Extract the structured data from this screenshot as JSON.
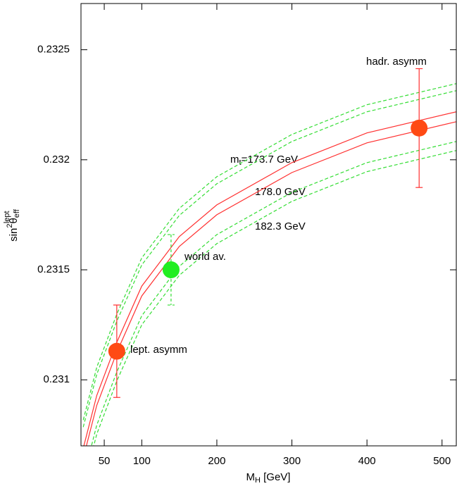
{
  "chart_data": {
    "type": "scatter",
    "x_label": {
      "main": "M",
      "sub": "H",
      "rest": " [GeV]"
    },
    "y_label": {
      "main": "sin",
      "sup": "2",
      "theta": "θ",
      "sub": "eff",
      "sup2": "lept"
    },
    "xlim": [
      19,
      519
    ],
    "ylim": [
      0.2307,
      0.23271
    ],
    "xticks": [
      50,
      100,
      200,
      300,
      400,
      500
    ],
    "yticks": [
      0.231,
      0.2315,
      0.232,
      0.2325
    ],
    "points": [
      {
        "name": "lept. asymm",
        "x": 66.7,
        "y": 0.23113,
        "yerr": 0.00021,
        "color": "#ff4a14",
        "err_color": "#ff3030",
        "err_dash": false
      },
      {
        "name": "world av.",
        "x": 139,
        "y": 0.2315,
        "yerr": 0.00016,
        "color": "#22ee22",
        "err_color": "#33dd33",
        "err_dash": true
      },
      {
        "name": "hadr. asymm",
        "x": 469.5,
        "y": 0.232144,
        "yerr": 0.00027,
        "color": "#ff4a14",
        "err_color": "#ff3030",
        "err_dash": false
      }
    ],
    "curve_x": [
      22,
      40,
      66.7,
      100,
      150,
      200,
      300,
      400,
      519
    ],
    "curves": [
      {
        "color": "#33dd33",
        "dash": true,
        "values": [
          0.230817,
          0.231057,
          0.231298,
          0.231554,
          0.231779,
          0.231923,
          0.232115,
          0.23225,
          0.232346
        ]
      },
      {
        "color": "#33dd33",
        "dash": true,
        "values": [
          0.230785,
          0.231025,
          0.231266,
          0.231522,
          0.231747,
          0.231891,
          0.232083,
          0.232218,
          0.232314
        ]
      },
      {
        "color": "#ff3030",
        "dash": false,
        "values": [
          0.230689,
          0.230929,
          0.23117,
          0.231426,
          0.231651,
          0.231795,
          0.231987,
          0.232122,
          0.232218
        ]
      },
      {
        "color": "#ff3030",
        "dash": false,
        "values": [
          0.230644,
          0.230884,
          0.231125,
          0.231381,
          0.231606,
          0.23175,
          0.231942,
          0.232077,
          0.232173
        ]
      },
      {
        "color": "#33dd33",
        "dash": true,
        "values": [
          0.230554,
          0.230794,
          0.231035,
          0.231291,
          0.231516,
          0.23166,
          0.231852,
          0.231987,
          0.232083
        ]
      },
      {
        "color": "#33dd33",
        "dash": true,
        "values": [
          0.230513,
          0.230753,
          0.230994,
          0.23125,
          0.231475,
          0.231619,
          0.231811,
          0.231946,
          0.232042
        ]
      }
    ],
    "annotations": [
      {
        "main": "m",
        "sub": "t",
        "rest": "=173.7 GeV"
      },
      {
        "main": "178.0 GeV"
      },
      {
        "main": "182.3 GeV"
      }
    ]
  }
}
